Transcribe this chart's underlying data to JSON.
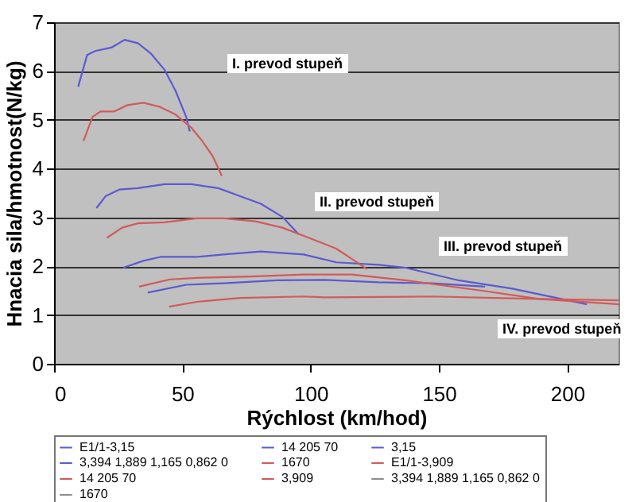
{
  "chart_data": {
    "type": "line",
    "xlabel": "Rýchlost (km/hod)",
    "ylabel": "Hnacia sila/hmotnost(N/kg)",
    "xlim": [
      0,
      220
    ],
    "xticks": [
      0,
      50,
      100,
      150,
      200
    ],
    "ylim": [
      0,
      7
    ],
    "yticks": [
      0,
      1,
      2,
      3,
      4,
      5,
      6,
      7
    ],
    "grid": "y",
    "legend": "bottom",
    "marker": "none",
    "line_style": "solid",
    "series": [
      {
        "name": "E1/1-3,15",
        "color": "#5a5ad2",
        "x": [
          9.4,
          12.9,
          16,
          22.3,
          27.5,
          32.7,
          37.9,
          43,
          47.3,
          51.5,
          52.9
        ],
        "values": [
          5.68,
          6.33,
          6.41,
          6.48,
          6.64,
          6.57,
          6.35,
          6.03,
          5.6,
          5.06,
          4.76
        ]
      },
      {
        "name": "14 205 70",
        "color": "#5a5ad2",
        "x": [
          16.5,
          20.2,
          25.4,
          32.7,
          43.1,
          53.5,
          64,
          72.3,
          80.6,
          89,
          95.2
        ],
        "values": [
          3.19,
          3.44,
          3.57,
          3.6,
          3.68,
          3.68,
          3.6,
          3.44,
          3.28,
          3.01,
          2.66
        ]
      },
      {
        "name": "3,15",
        "color": "#5a5ad2",
        "x": [
          27,
          34.8,
          41.4,
          55.6,
          66,
          80.6,
          97.3,
          110,
          126.5,
          136.9,
          157.7,
          178.6,
          207.7
        ],
        "values": [
          1.97,
          2.11,
          2.19,
          2.19,
          2.24,
          2.3,
          2.24,
          2.08,
          2.03,
          1.97,
          1.71,
          1.54,
          1.22
        ]
      },
      {
        "name": "3,394 1,889 1,165 0,862 0",
        "color": "#5a5ad2",
        "x": [
          36.5,
          51.5,
          66,
          86.9,
          105.6,
          126.5,
          147.3,
          168
        ],
        "values": [
          1.46,
          1.62,
          1.65,
          1.71,
          1.72,
          1.67,
          1.65,
          1.58
        ]
      },
      {
        "name": "1670",
        "color": "#d25a5a",
        "x": [
          11.5,
          15,
          18.1,
          23.3,
          28.5,
          34.8,
          41,
          47.3,
          53.5,
          57.7,
          61.9,
          65.4
        ],
        "values": [
          4.57,
          5.06,
          5.17,
          5.17,
          5.3,
          5.35,
          5.27,
          5.11,
          4.84,
          4.57,
          4.25,
          3.85
        ]
      },
      {
        "name": "E1/1-3,909",
        "color": "#d25a5a",
        "x": [
          20.6,
          26.5,
          32.7,
          43.1,
          55.6,
          66,
          78.5,
          89,
          99.4,
          110,
          116,
          122
        ],
        "values": [
          2.58,
          2.79,
          2.88,
          2.9,
          2.98,
          2.98,
          2.92,
          2.79,
          2.58,
          2.36,
          2.15,
          1.94
        ]
      },
      {
        "name": "14 205 70",
        "color": "#d25a5a",
        "x": [
          33.1,
          45.2,
          55.6,
          76.5,
          97.3,
          116,
          136.9,
          168,
          189,
          220
        ],
        "values": [
          1.58,
          1.73,
          1.76,
          1.79,
          1.83,
          1.83,
          1.71,
          1.49,
          1.33,
          1.22
        ]
      },
      {
        "name": "3,909",
        "color": "#d25a5a",
        "x": [
          44.8,
          55.6,
          72.3,
          97.3,
          105.6,
          147.3,
          189,
          220
        ],
        "values": [
          1.17,
          1.27,
          1.35,
          1.38,
          1.36,
          1.38,
          1.33,
          1.3
        ]
      },
      {
        "name": "3,394 1,889 1,165 0,862 0",
        "color": "#8c8c8c"
      },
      {
        "name": "1670",
        "color": "#8c8c8c"
      }
    ],
    "annotations": [
      "I. prevod stupeň",
      "II. prevod stupeň",
      "III. prevod stupeň",
      "IV. prevod stupeň"
    ]
  }
}
